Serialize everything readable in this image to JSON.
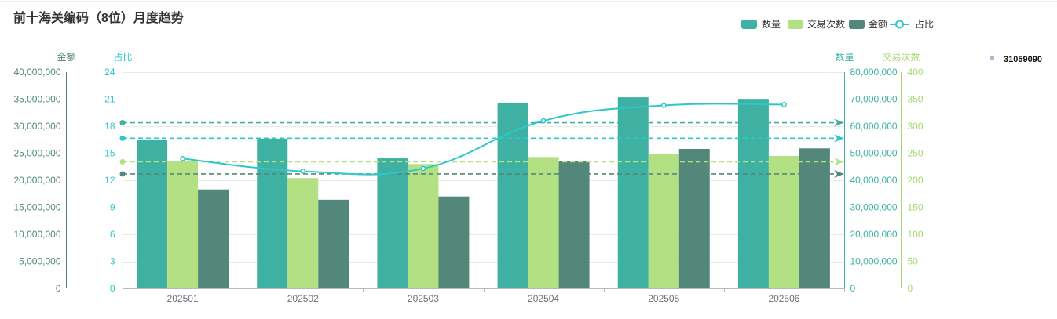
{
  "chart_data": {
    "type": "bar",
    "title": "前十海关编码（8位）月度趋势",
    "categories": [
      "202501",
      "202502",
      "202503",
      "202504",
      "202505",
      "202506"
    ],
    "y_axes": [
      {
        "name": "金额",
        "side": "left",
        "min": 0,
        "max": 40000000,
        "color": "#52877a",
        "tick_labels": [
          "0",
          "5,000,000",
          "10,000,000",
          "15,000,000",
          "20,000,000",
          "25,000,000",
          "30,000,000",
          "35,000,000",
          "40,000,000"
        ]
      },
      {
        "name": "占比",
        "side": "left",
        "min": 0,
        "max": 24,
        "color": "#2ec7c9",
        "tick_labels": [
          "0",
          "3",
          "6",
          "9",
          "12",
          "15",
          "18",
          "21",
          "24"
        ]
      },
      {
        "name": "数量",
        "side": "right",
        "min": 0,
        "max": 80000000,
        "color": "#3fb1a3",
        "tick_labels": [
          "0",
          "10,000,000",
          "20,000,000",
          "30,000,000",
          "40,000,000",
          "50,000,000",
          "60,000,000",
          "70,000,000",
          "80,000,000"
        ]
      },
      {
        "name": "交易次数",
        "side": "right",
        "min": 0,
        "max": 400,
        "color": "#a6d86e",
        "tick_labels": [
          "0",
          "50",
          "100",
          "150",
          "200",
          "250",
          "300",
          "350",
          "400"
        ]
      }
    ],
    "series": [
      {
        "name": "数量",
        "type": "bar",
        "y_axis": "数量",
        "color": "#3fb1a3",
        "mark_line": "average",
        "values": [
          54800000,
          55400000,
          48100000,
          68700000,
          70700000,
          70100000
        ]
      },
      {
        "name": "交易次数",
        "type": "bar",
        "y_axis": "交易次数",
        "color": "#b2e082",
        "mark_line": "average",
        "values": [
          235,
          204,
          230,
          243,
          248,
          245
        ]
      },
      {
        "name": "金额",
        "type": "bar",
        "y_axis": "金额",
        "color": "#52877a",
        "mark_line": "average",
        "values": [
          18300000,
          16400000,
          17000000,
          23600000,
          25800000,
          25900000
        ]
      },
      {
        "name": "占比",
        "type": "line",
        "y_axis": "占比",
        "color": "#2ec7c9",
        "mark_line": "average",
        "values": [
          14.4,
          13.0,
          13.3,
          18.6,
          20.3,
          20.4
        ]
      }
    ],
    "legend_placement": "top-right",
    "grid": "horizontal"
  },
  "filter_tag": {
    "label": "31059090",
    "color": "#d6a9de"
  }
}
